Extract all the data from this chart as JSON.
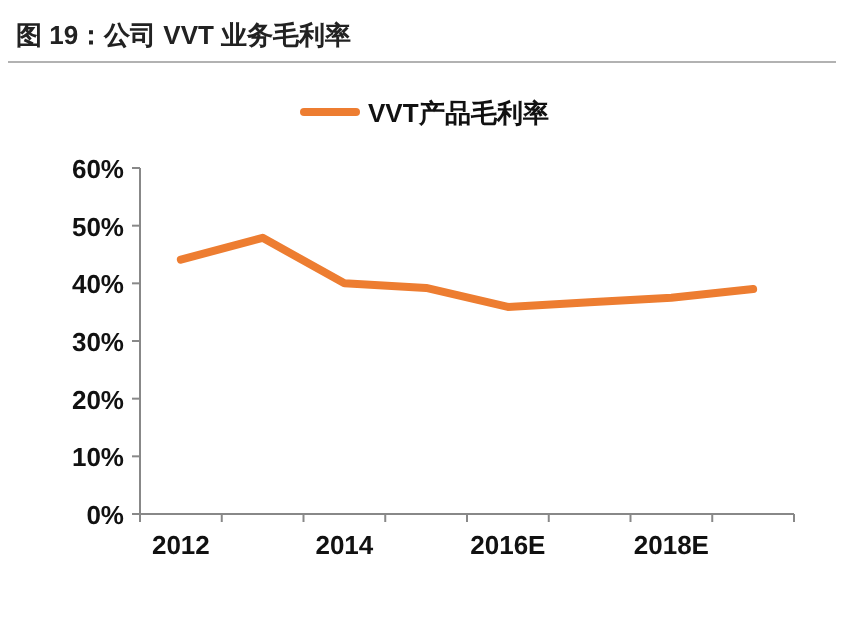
{
  "chart_data": {
    "type": "line",
    "title": "图 19：公司 VVT 业务毛利率",
    "categories": [
      "2012",
      null,
      "2014",
      null,
      "2016E",
      null,
      "2018E",
      null
    ],
    "series": [
      {
        "name": "VVT产品毛利率",
        "color": "#ed7d31",
        "values": [
          44.1,
          47.9,
          40.0,
          39.2,
          35.9,
          36.7,
          37.5,
          39.0
        ]
      }
    ],
    "ylim": [
      0,
      60
    ],
    "yticks": [
      {
        "value": 0,
        "label": "0%"
      },
      {
        "value": 10,
        "label": "10%"
      },
      {
        "value": 20,
        "label": "20%"
      },
      {
        "value": 30,
        "label": "30%"
      },
      {
        "value": 40,
        "label": "40%"
      },
      {
        "value": 50,
        "label": "50%"
      },
      {
        "value": 60,
        "label": "60%"
      }
    ],
    "legend": "top",
    "grid": false,
    "marker": "none",
    "line_style": "solid"
  }
}
